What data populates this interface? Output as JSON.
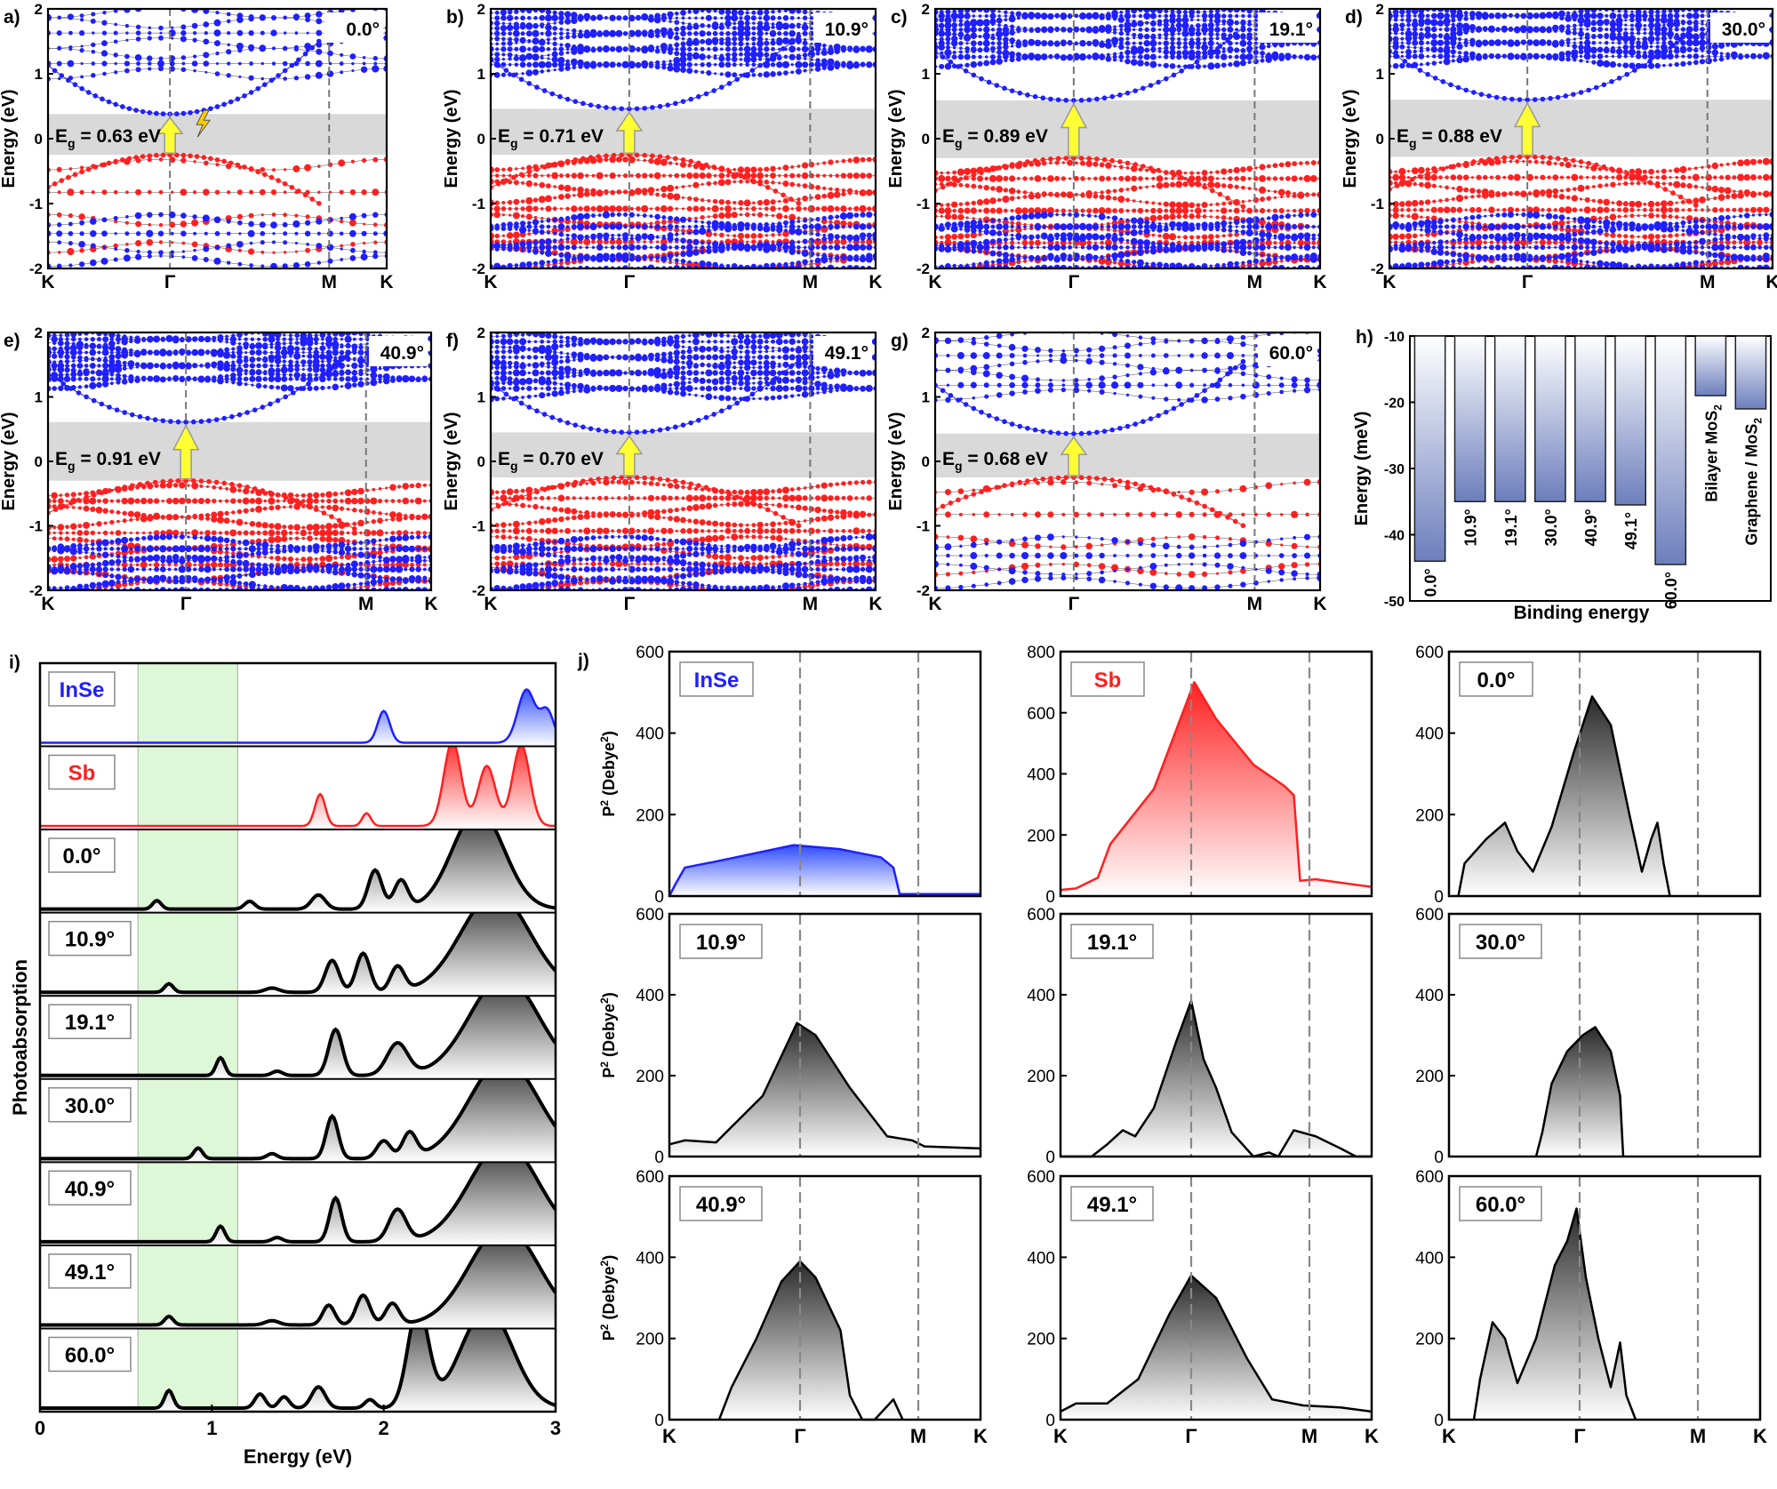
{
  "colors": {
    "insea": "#1f1fff",
    "sb": "#ff1f1f",
    "gap": "#d9d9d9",
    "arrow": "#ffff33",
    "green": "#dcf8d6",
    "bar_top": "#ffffff",
    "bar_bottom": "#6c7fbd"
  },
  "chart_data": [
    {
      "type": "line",
      "group": "band_structure",
      "xlabel_ticks": [
        "K",
        "Γ",
        "M",
        "K"
      ],
      "ylabel": "Energy (eV)",
      "ylim": [
        -2,
        2
      ],
      "yticks": [
        "-2",
        "-1",
        "0",
        "1",
        "2"
      ],
      "eg_prefix": "E",
      "eg_sub": "g",
      "panels": [
        {
          "letter": "a)",
          "angle": "0.0°",
          "eg_text": " = 0.63 eV",
          "gap": [
            -0.25,
            0.38
          ],
          "vbm": -0.25,
          "cbm": 0.38
        },
        {
          "letter": "b)",
          "angle": "10.9°",
          "eg_text": " = 0.71 eV",
          "gap": [
            -0.25,
            0.46
          ],
          "vbm": -0.25,
          "cbm": 0.46
        },
        {
          "letter": "c)",
          "angle": "19.1°",
          "eg_text": " = 0.89 eV",
          "gap": [
            -0.3,
            0.59
          ],
          "vbm": -0.3,
          "cbm": 0.59
        },
        {
          "letter": "d)",
          "angle": "30.0°",
          "eg_text": " = 0.88 eV",
          "gap": [
            -0.28,
            0.6
          ],
          "vbm": -0.28,
          "cbm": 0.6
        },
        {
          "letter": "e)",
          "angle": "40.9°",
          "eg_text": " = 0.91 eV",
          "gap": [
            -0.3,
            0.61
          ],
          "vbm": -0.3,
          "cbm": 0.61
        },
        {
          "letter": "f)",
          "angle": "49.1°",
          "eg_text": " = 0.70 eV",
          "gap": [
            -0.25,
            0.45
          ],
          "vbm": -0.25,
          "cbm": 0.45
        },
        {
          "letter": "g)",
          "angle": "60.0°",
          "eg_text": " = 0.68 eV",
          "gap": [
            -0.25,
            0.43
          ],
          "vbm": -0.25,
          "cbm": 0.43
        }
      ]
    },
    {
      "type": "bar",
      "letter": "h)",
      "title": "Binding energy",
      "ylabel": "Energy (meV)",
      "ylim": [
        -50,
        -10
      ],
      "yticks": [
        "-10",
        "-20",
        "-30",
        "-40",
        "-50"
      ],
      "categories": [
        "0.0°",
        "10.9°",
        "19.1°",
        "30.0°",
        "40.9°",
        "49.1°",
        "60.0°",
        "Bilayer MoS",
        "Graphene / MoS"
      ],
      "category_sub": [
        "",
        "",
        "",
        "",
        "",
        "",
        "",
        "2",
        "2"
      ],
      "values": [
        -44,
        -35,
        -35,
        -35,
        -35,
        -35.5,
        -44.5,
        -19,
        -21
      ]
    },
    {
      "type": "area",
      "letter": "i)",
      "xlabel": "Energy (eV)",
      "ylabel": "Photoabsorption",
      "xlim": [
        0,
        3
      ],
      "xticks": [
        "0",
        "1",
        "2",
        "3"
      ],
      "shaded_region": [
        0.57,
        1.15
      ],
      "series": [
        {
          "name": "InSe",
          "color": "blue",
          "peaks": [
            [
              2.0,
              0.45,
              0.035
            ],
            [
              2.83,
              0.75,
              0.05
            ],
            [
              2.95,
              0.45,
              0.04
            ]
          ]
        },
        {
          "name": "Sb",
          "color": "red",
          "peaks": [
            [
              1.63,
              0.45,
              0.03
            ],
            [
              1.9,
              0.18,
              0.025
            ],
            [
              2.4,
              1.2,
              0.05
            ],
            [
              2.6,
              0.85,
              0.05
            ],
            [
              2.8,
              1.15,
              0.05
            ]
          ]
        },
        {
          "name": "0.0°",
          "color": "gray",
          "peaks": [
            [
              0.68,
              0.12,
              0.025
            ],
            [
              1.22,
              0.11,
              0.03
            ],
            [
              1.62,
              0.2,
              0.04
            ],
            [
              1.95,
              0.55,
              0.04
            ],
            [
              2.1,
              0.4,
              0.04
            ],
            [
              2.55,
              1.4,
              0.15
            ]
          ]
        },
        {
          "name": "10.9°",
          "color": "gray",
          "peaks": [
            [
              0.75,
              0.12,
              0.025
            ],
            [
              1.35,
              0.06,
              0.04
            ],
            [
              1.7,
              0.45,
              0.04
            ],
            [
              1.88,
              0.55,
              0.04
            ],
            [
              2.08,
              0.35,
              0.04
            ],
            [
              2.65,
              1.4,
              0.2
            ]
          ]
        },
        {
          "name": "19.1°",
          "color": "gray",
          "peaks": [
            [
              1.05,
              0.25,
              0.025
            ],
            [
              1.38,
              0.06,
              0.03
            ],
            [
              1.72,
              0.65,
              0.04
            ],
            [
              2.08,
              0.45,
              0.06
            ],
            [
              2.7,
              1.4,
              0.2
            ]
          ]
        },
        {
          "name": "30.0°",
          "color": "gray",
          "peaks": [
            [
              0.92,
              0.15,
              0.025
            ],
            [
              1.35,
              0.07,
              0.03
            ],
            [
              1.7,
              0.6,
              0.035
            ],
            [
              2.0,
              0.25,
              0.04
            ],
            [
              2.15,
              0.35,
              0.04
            ],
            [
              2.7,
              1.4,
              0.2
            ]
          ]
        },
        {
          "name": "40.9°",
          "color": "gray",
          "peaks": [
            [
              1.05,
              0.22,
              0.025
            ],
            [
              1.38,
              0.06,
              0.03
            ],
            [
              1.72,
              0.62,
              0.035
            ],
            [
              2.08,
              0.45,
              0.05
            ],
            [
              2.7,
              1.4,
              0.2
            ]
          ]
        },
        {
          "name": "49.1°",
          "color": "gray",
          "peaks": [
            [
              0.75,
              0.12,
              0.025
            ],
            [
              1.35,
              0.06,
              0.04
            ],
            [
              1.68,
              0.28,
              0.035
            ],
            [
              1.88,
              0.42,
              0.04
            ],
            [
              2.05,
              0.3,
              0.04
            ],
            [
              2.7,
              1.4,
              0.2
            ]
          ]
        },
        {
          "name": "60.0°",
          "color": "gray",
          "peaks": [
            [
              0.75,
              0.25,
              0.025
            ],
            [
              1.28,
              0.2,
              0.03
            ],
            [
              1.42,
              0.16,
              0.03
            ],
            [
              1.62,
              0.3,
              0.04
            ],
            [
              1.92,
              0.12,
              0.03
            ],
            [
              2.2,
              1.4,
              0.06
            ],
            [
              2.6,
              1.4,
              0.15
            ]
          ]
        }
      ]
    },
    {
      "type": "area",
      "letter": "j)",
      "ylabel_base": "P",
      "ylabel_sup": "2",
      "ylabel_unit": " (Debye",
      "ylabel_unit_sup": "2",
      "ylabel_close": ")",
      "xticks": [
        "K",
        "Γ",
        "M",
        "K"
      ],
      "panels": [
        {
          "name": "InSe",
          "color": "blue",
          "ymax": 600,
          "yticks": [
            "0",
            "200",
            "400",
            "600"
          ],
          "points": [
            [
              0,
              0
            ],
            [
              0.02,
              30
            ],
            [
              0.05,
              70
            ],
            [
              0.15,
              85
            ],
            [
              0.4,
              125
            ],
            [
              0.55,
              115
            ],
            [
              0.68,
              95
            ],
            [
              0.72,
              70
            ],
            [
              0.74,
              5
            ],
            [
              1,
              5
            ]
          ]
        },
        {
          "name": "Sb",
          "color": "red",
          "ymax": 800,
          "yticks": [
            "0",
            "200",
            "400",
            "600",
            "800"
          ],
          "points": [
            [
              0,
              20
            ],
            [
              0.05,
              25
            ],
            [
              0.12,
              60
            ],
            [
              0.16,
              170
            ],
            [
              0.3,
              350
            ],
            [
              0.43,
              700
            ],
            [
              0.5,
              580
            ],
            [
              0.62,
              430
            ],
            [
              0.72,
              360
            ],
            [
              0.75,
              330
            ],
            [
              0.77,
              50
            ],
            [
              0.82,
              55
            ],
            [
              1,
              30
            ]
          ]
        },
        {
          "name": "0.0°",
          "color": "gray",
          "ymax": 600,
          "yticks": [
            "0",
            "200",
            "400",
            "600"
          ],
          "points": [
            [
              0.03,
              0
            ],
            [
              0.05,
              80
            ],
            [
              0.12,
              140
            ],
            [
              0.18,
              180
            ],
            [
              0.22,
              110
            ],
            [
              0.27,
              60
            ],
            [
              0.33,
              170
            ],
            [
              0.4,
              350
            ],
            [
              0.46,
              490
            ],
            [
              0.52,
              420
            ],
            [
              0.58,
              200
            ],
            [
              0.62,
              60
            ],
            [
              0.65,
              140
            ],
            [
              0.67,
              180
            ],
            [
              0.69,
              80
            ],
            [
              0.71,
              0
            ]
          ]
        },
        {
          "name": "10.9°",
          "color": "gray",
          "ymax": 600,
          "yticks": [
            "0",
            "200",
            "400",
            "600"
          ],
          "points": [
            [
              0,
              30
            ],
            [
              0.05,
              40
            ],
            [
              0.15,
              35
            ],
            [
              0.3,
              150
            ],
            [
              0.41,
              330
            ],
            [
              0.47,
              300
            ],
            [
              0.58,
              170
            ],
            [
              0.7,
              50
            ],
            [
              0.78,
              40
            ],
            [
              0.82,
              25
            ],
            [
              1,
              20
            ]
          ]
        },
        {
          "name": "19.1°",
          "color": "gray",
          "ymax": 600,
          "yticks": [
            "0",
            "200",
            "400",
            "600"
          ],
          "points": [
            [
              0,
              0
            ],
            [
              0.1,
              0
            ],
            [
              0.15,
              30
            ],
            [
              0.2,
              65
            ],
            [
              0.24,
              50
            ],
            [
              0.3,
              120
            ],
            [
              0.37,
              280
            ],
            [
              0.42,
              385
            ],
            [
              0.46,
              240
            ],
            [
              0.5,
              170
            ],
            [
              0.55,
              60
            ],
            [
              0.62,
              0
            ],
            [
              0.67,
              10
            ],
            [
              0.7,
              0
            ],
            [
              0.75,
              65
            ],
            [
              0.82,
              50
            ],
            [
              0.9,
              20
            ],
            [
              0.95,
              0
            ],
            [
              1,
              0
            ]
          ]
        },
        {
          "name": "30.0°",
          "color": "gray",
          "ymax": 600,
          "yticks": [
            "0",
            "200",
            "400",
            "600"
          ],
          "points": [
            [
              0.28,
              0
            ],
            [
              0.3,
              60
            ],
            [
              0.33,
              180
            ],
            [
              0.38,
              260
            ],
            [
              0.43,
              300
            ],
            [
              0.47,
              320
            ],
            [
              0.52,
              260
            ],
            [
              0.55,
              150
            ],
            [
              0.56,
              0
            ]
          ]
        },
        {
          "name": "40.9°",
          "color": "gray",
          "ymax": 600,
          "yticks": [
            "0",
            "200",
            "400",
            "600"
          ],
          "points": [
            [
              0.16,
              0
            ],
            [
              0.2,
              80
            ],
            [
              0.28,
              200
            ],
            [
              0.36,
              340
            ],
            [
              0.42,
              390
            ],
            [
              0.47,
              350
            ],
            [
              0.55,
              220
            ],
            [
              0.58,
              60
            ],
            [
              0.62,
              0
            ],
            [
              0.66,
              0
            ],
            [
              0.72,
              50
            ],
            [
              0.75,
              0
            ]
          ]
        },
        {
          "name": "49.1°",
          "color": "gray",
          "ymax": 600,
          "yticks": [
            "0",
            "200",
            "400",
            "600"
          ],
          "points": [
            [
              0,
              20
            ],
            [
              0.05,
              40
            ],
            [
              0.15,
              40
            ],
            [
              0.25,
              100
            ],
            [
              0.35,
              260
            ],
            [
              0.42,
              355
            ],
            [
              0.5,
              300
            ],
            [
              0.6,
              150
            ],
            [
              0.68,
              50
            ],
            [
              0.78,
              35
            ],
            [
              0.9,
              30
            ],
            [
              1,
              20
            ]
          ]
        },
        {
          "name": "60.0°",
          "color": "gray",
          "ymax": 600,
          "yticks": [
            "0",
            "200",
            "400",
            "600"
          ],
          "points": [
            [
              0.08,
              0
            ],
            [
              0.1,
              100
            ],
            [
              0.14,
              240
            ],
            [
              0.18,
              200
            ],
            [
              0.22,
              90
            ],
            [
              0.28,
              200
            ],
            [
              0.34,
              380
            ],
            [
              0.38,
              440
            ],
            [
              0.41,
              520
            ],
            [
              0.44,
              350
            ],
            [
              0.48,
              200
            ],
            [
              0.52,
              80
            ],
            [
              0.55,
              190
            ],
            [
              0.57,
              60
            ],
            [
              0.6,
              0
            ]
          ]
        }
      ]
    }
  ]
}
